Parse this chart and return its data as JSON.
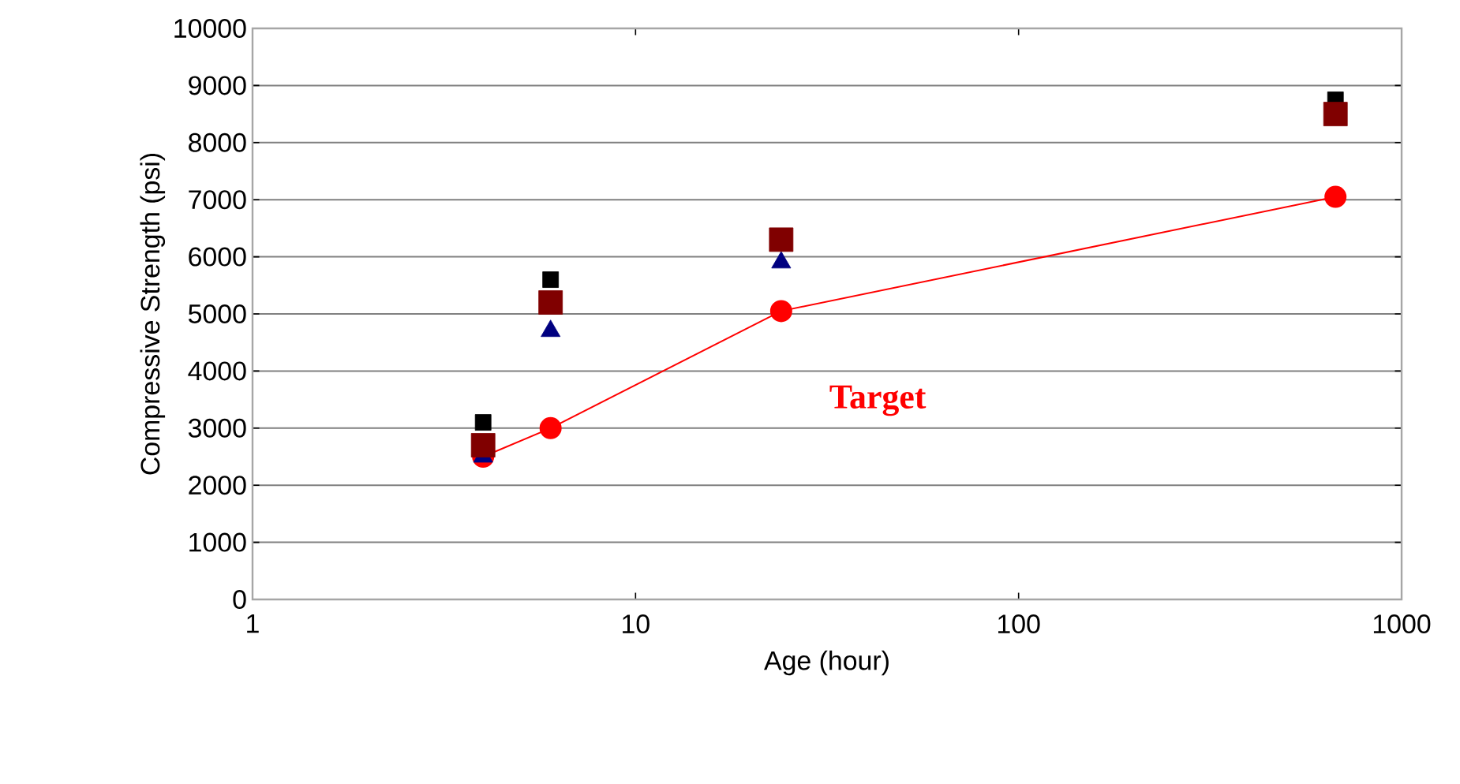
{
  "chart_data": {
    "type": "scatter",
    "xlabel": "Age (hour)",
    "ylabel": "Compressive Strength (psi)",
    "log": "x",
    "grid": "y",
    "xlim": [
      1,
      1000
    ],
    "xticks": [
      1,
      10,
      100,
      1000
    ],
    "ylim": [
      0,
      10000
    ],
    "yticks": [
      0,
      1000,
      2000,
      3000,
      4000,
      5000,
      6000,
      7000,
      8000,
      9000,
      10000
    ],
    "x": [
      4,
      6,
      24,
      672
    ],
    "series": [
      {
        "type": "line",
        "color": "#ff0000",
        "marker": "circle",
        "values": [
          2500,
          3000,
          5050,
          7050
        ]
      },
      {
        "color": "#000000",
        "marker": "square",
        "values": [
          3100,
          5600,
          null,
          8750
        ]
      },
      {
        "color": "#000080",
        "marker": "triangle",
        "values": [
          2500,
          4700,
          5900,
          null
        ]
      },
      {
        "color": "#800000",
        "marker": "square",
        "values": [
          2700,
          5200,
          6300,
          8500
        ]
      }
    ],
    "annotations": [
      "Target"
    ]
  }
}
